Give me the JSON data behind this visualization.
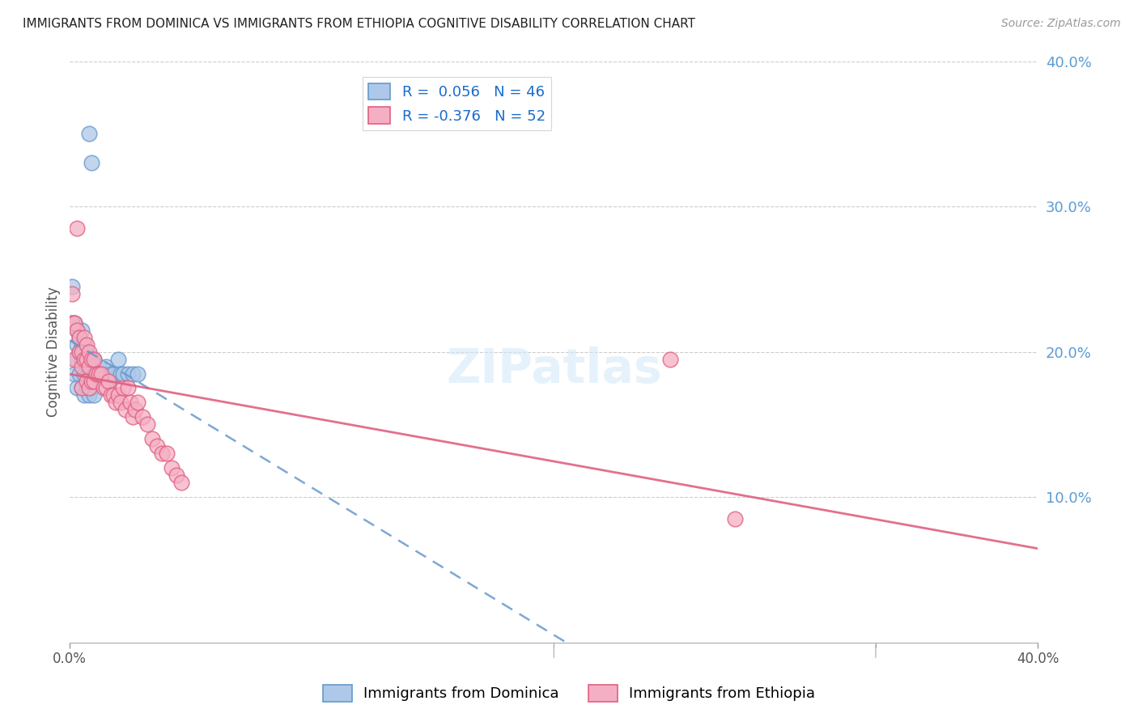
{
  "title": "IMMIGRANTS FROM DOMINICA VS IMMIGRANTS FROM ETHIOPIA COGNITIVE DISABILITY CORRELATION CHART",
  "source": "Source: ZipAtlas.com",
  "ylabel": "Cognitive Disability",
  "legend_label1": "Immigrants from Dominica",
  "legend_label2": "Immigrants from Ethiopia",
  "R1": 0.056,
  "N1": 46,
  "R2": -0.376,
  "N2": 52,
  "xlim": [
    0.0,
    0.4
  ],
  "ylim": [
    0.0,
    0.4
  ],
  "xtick_labels": [
    "0.0%",
    "40.0%"
  ],
  "xtick_positions": [
    0.0,
    0.4
  ],
  "xtick_minor": [
    0.2,
    0.333
  ],
  "yticks_right": [
    0.1,
    0.2,
    0.3,
    0.4
  ],
  "color_blue": "#adc8e8",
  "color_pink": "#f5afc4",
  "line_blue": "#6699cc",
  "line_pink": "#e06080",
  "dominica_x": [
    0.001,
    0.001,
    0.002,
    0.002,
    0.003,
    0.003,
    0.003,
    0.003,
    0.004,
    0.004,
    0.004,
    0.005,
    0.005,
    0.005,
    0.005,
    0.006,
    0.006,
    0.006,
    0.006,
    0.007,
    0.007,
    0.007,
    0.008,
    0.008,
    0.008,
    0.009,
    0.009,
    0.01,
    0.01,
    0.01,
    0.011,
    0.012,
    0.013,
    0.014,
    0.015,
    0.016,
    0.017,
    0.018,
    0.02,
    0.021,
    0.022,
    0.024,
    0.026,
    0.028,
    0.008,
    0.009
  ],
  "dominica_y": [
    0.245,
    0.22,
    0.22,
    0.185,
    0.215,
    0.205,
    0.195,
    0.175,
    0.21,
    0.2,
    0.185,
    0.215,
    0.205,
    0.195,
    0.175,
    0.205,
    0.195,
    0.185,
    0.17,
    0.2,
    0.19,
    0.175,
    0.195,
    0.185,
    0.17,
    0.19,
    0.175,
    0.195,
    0.185,
    0.17,
    0.185,
    0.19,
    0.185,
    0.185,
    0.19,
    0.18,
    0.185,
    0.185,
    0.195,
    0.185,
    0.185,
    0.185,
    0.185,
    0.185,
    0.35,
    0.33
  ],
  "ethiopia_x": [
    0.001,
    0.001,
    0.002,
    0.002,
    0.003,
    0.003,
    0.004,
    0.004,
    0.005,
    0.005,
    0.005,
    0.006,
    0.006,
    0.007,
    0.007,
    0.007,
    0.008,
    0.008,
    0.008,
    0.009,
    0.009,
    0.01,
    0.01,
    0.011,
    0.012,
    0.013,
    0.014,
    0.015,
    0.016,
    0.017,
    0.018,
    0.019,
    0.02,
    0.021,
    0.022,
    0.023,
    0.024,
    0.025,
    0.026,
    0.027,
    0.028,
    0.03,
    0.032,
    0.034,
    0.036,
    0.038,
    0.04,
    0.042,
    0.044,
    0.046,
    0.248,
    0.275
  ],
  "ethiopia_y": [
    0.24,
    0.22,
    0.22,
    0.195,
    0.285,
    0.215,
    0.21,
    0.2,
    0.2,
    0.19,
    0.175,
    0.21,
    0.195,
    0.205,
    0.195,
    0.18,
    0.2,
    0.19,
    0.175,
    0.195,
    0.18,
    0.195,
    0.18,
    0.185,
    0.185,
    0.185,
    0.175,
    0.175,
    0.18,
    0.17,
    0.17,
    0.165,
    0.17,
    0.165,
    0.175,
    0.16,
    0.175,
    0.165,
    0.155,
    0.16,
    0.165,
    0.155,
    0.15,
    0.14,
    0.135,
    0.13,
    0.13,
    0.12,
    0.115,
    0.11,
    0.195,
    0.085
  ]
}
